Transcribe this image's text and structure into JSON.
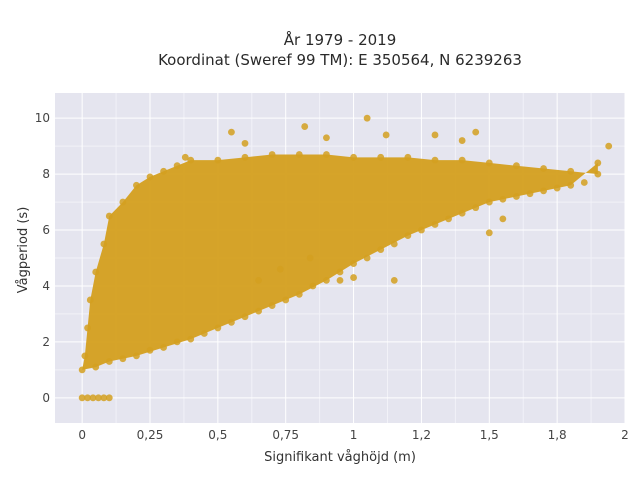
{
  "chart_data": {
    "type": "scatter",
    "title": "År 1979 - 2019",
    "subtitle": "Koordinat (Sweref 99 TM): E 350564, N 6239263",
    "xlabel": "Signifikant våghöjd (m)",
    "ylabel": "Vågperiod (s)",
    "xlim": [
      -0.1,
      2.0
    ],
    "ylim": [
      -0.9,
      10.9
    ],
    "x_ticks": [
      0,
      0.25,
      0.5,
      0.75,
      1,
      1.25,
      1.5,
      1.75,
      2
    ],
    "x_tick_labels": [
      "0",
      "0,25",
      "0,5",
      "0,75",
      "1",
      "1,2",
      "1,5",
      "1,8",
      "2"
    ],
    "y_ticks": [
      0,
      2,
      4,
      6,
      8,
      10
    ],
    "y_tick_labels": [
      "0",
      "2",
      "4",
      "6",
      "8",
      "10"
    ],
    "grid": true,
    "marker_color": "#D4A020",
    "plot_background": "#E5E5EF",
    "series": [
      {
        "x": [
          0.0,
          0.02,
          0.04,
          0.06,
          0.08,
          0.1,
          0.0,
          0.01,
          0.02,
          0.03,
          0.05,
          0.08,
          0.1,
          0.15,
          0.2,
          0.25,
          0.3,
          0.35,
          0.4,
          0.5,
          0.6,
          0.7,
          0.8,
          0.9,
          1.0,
          1.1,
          1.2,
          1.3,
          1.4,
          1.5,
          1.6,
          1.7,
          1.8,
          1.9,
          0.05,
          0.1,
          0.2,
          0.3,
          0.4,
          0.5,
          0.6,
          0.7,
          0.8,
          0.9,
          1.0,
          1.1,
          1.2,
          1.3,
          1.4,
          1.5,
          1.6,
          1.7,
          1.8,
          1.9,
          1.94,
          0.15,
          0.25,
          0.35,
          0.45,
          0.55,
          0.65,
          0.75,
          0.85,
          0.95,
          1.05,
          1.15,
          1.25,
          1.35,
          1.45,
          1.55,
          1.65,
          1.75,
          1.85,
          0.38,
          0.6,
          0.82,
          1.4,
          0.55,
          0.9,
          1.05,
          1.12,
          1.3,
          1.45,
          0.65,
          0.73,
          0.84,
          0.95,
          1.0,
          1.15,
          1.5,
          1.55
        ],
        "y": [
          0.0,
          0.0,
          0.0,
          0.0,
          0.0,
          0.0,
          1.0,
          1.5,
          2.5,
          3.5,
          4.5,
          5.5,
          6.5,
          7.0,
          7.6,
          7.9,
          8.1,
          8.3,
          8.5,
          8.5,
          8.6,
          8.7,
          8.7,
          8.7,
          8.6,
          8.6,
          8.6,
          8.5,
          8.5,
          8.4,
          8.3,
          8.2,
          8.1,
          8.0,
          1.1,
          1.3,
          1.5,
          1.8,
          2.1,
          2.5,
          2.9,
          3.3,
          3.7,
          4.2,
          4.8,
          5.3,
          5.8,
          6.2,
          6.6,
          7.0,
          7.2,
          7.4,
          7.6,
          8.4,
          9.0,
          1.4,
          1.7,
          2.0,
          2.3,
          2.7,
          3.1,
          3.5,
          4.0,
          4.5,
          5.0,
          5.5,
          6.0,
          6.4,
          6.8,
          7.1,
          7.3,
          7.5,
          7.7,
          8.6,
          9.1,
          9.7,
          9.2,
          9.5,
          9.3,
          10.0,
          9.4,
          9.4,
          9.5,
          4.2,
          4.6,
          5.0,
          4.2,
          4.3,
          4.2,
          5.9,
          6.4
        ]
      }
    ]
  }
}
